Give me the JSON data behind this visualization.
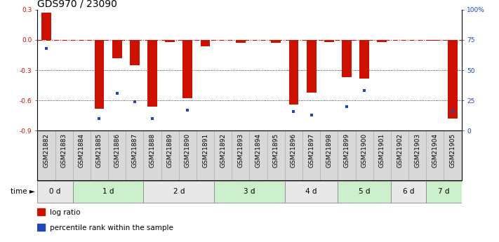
{
  "title": "GDS970 / 23090",
  "samples": [
    "GSM21882",
    "GSM21883",
    "GSM21884",
    "GSM21885",
    "GSM21886",
    "GSM21887",
    "GSM21888",
    "GSM21889",
    "GSM21890",
    "GSM21891",
    "GSM21892",
    "GSM21893",
    "GSM21894",
    "GSM21895",
    "GSM21896",
    "GSM21897",
    "GSM21898",
    "GSM21899",
    "GSM21900",
    "GSM21901",
    "GSM21902",
    "GSM21903",
    "GSM21904",
    "GSM21905"
  ],
  "log_ratio": [
    0.27,
    0.0,
    0.0,
    -0.68,
    -0.18,
    -0.25,
    -0.66,
    -0.02,
    -0.58,
    -0.06,
    0.0,
    -0.03,
    0.0,
    -0.03,
    -0.64,
    -0.52,
    -0.02,
    -0.37,
    -0.38,
    -0.02,
    0.0,
    0.0,
    -0.01,
    -0.78
  ],
  "percentile_rank_pct": [
    68,
    null,
    null,
    10,
    31,
    24,
    10,
    null,
    17,
    null,
    null,
    null,
    null,
    null,
    16,
    13,
    null,
    20,
    33,
    null,
    null,
    null,
    null,
    16
  ],
  "time_groups": [
    {
      "label": "0 d",
      "start": 0,
      "end": 2,
      "color": "#e8e8e8"
    },
    {
      "label": "1 d",
      "start": 2,
      "end": 6,
      "color": "#ccf0cc"
    },
    {
      "label": "2 d",
      "start": 6,
      "end": 10,
      "color": "#e8e8e8"
    },
    {
      "label": "3 d",
      "start": 10,
      "end": 14,
      "color": "#ccf0cc"
    },
    {
      "label": "4 d",
      "start": 14,
      "end": 17,
      "color": "#e8e8e8"
    },
    {
      "label": "5 d",
      "start": 17,
      "end": 20,
      "color": "#ccf0cc"
    },
    {
      "label": "6 d",
      "start": 20,
      "end": 22,
      "color": "#e8e8e8"
    },
    {
      "label": "7 d",
      "start": 22,
      "end": 24,
      "color": "#ccf0cc"
    }
  ],
  "ylim_left": [
    -0.9,
    0.3
  ],
  "ylim_right": [
    0,
    100
  ],
  "yticks_left": [
    0.3,
    0.0,
    -0.3,
    -0.6,
    -0.9
  ],
  "yticks_right": [
    100,
    75,
    50,
    25,
    0
  ],
  "bar_color": "#cc1100",
  "dot_color": "#2244bb",
  "bar_width": 0.55,
  "title_fontsize": 10,
  "tick_fontsize": 6.5,
  "label_fontsize": 7.5,
  "legend_label_bar": "log ratio",
  "legend_label_dot": "percentile rank within the sample",
  "xtick_bg_color": "#d8d8d8",
  "xtick_border_color": "#aaaaaa"
}
